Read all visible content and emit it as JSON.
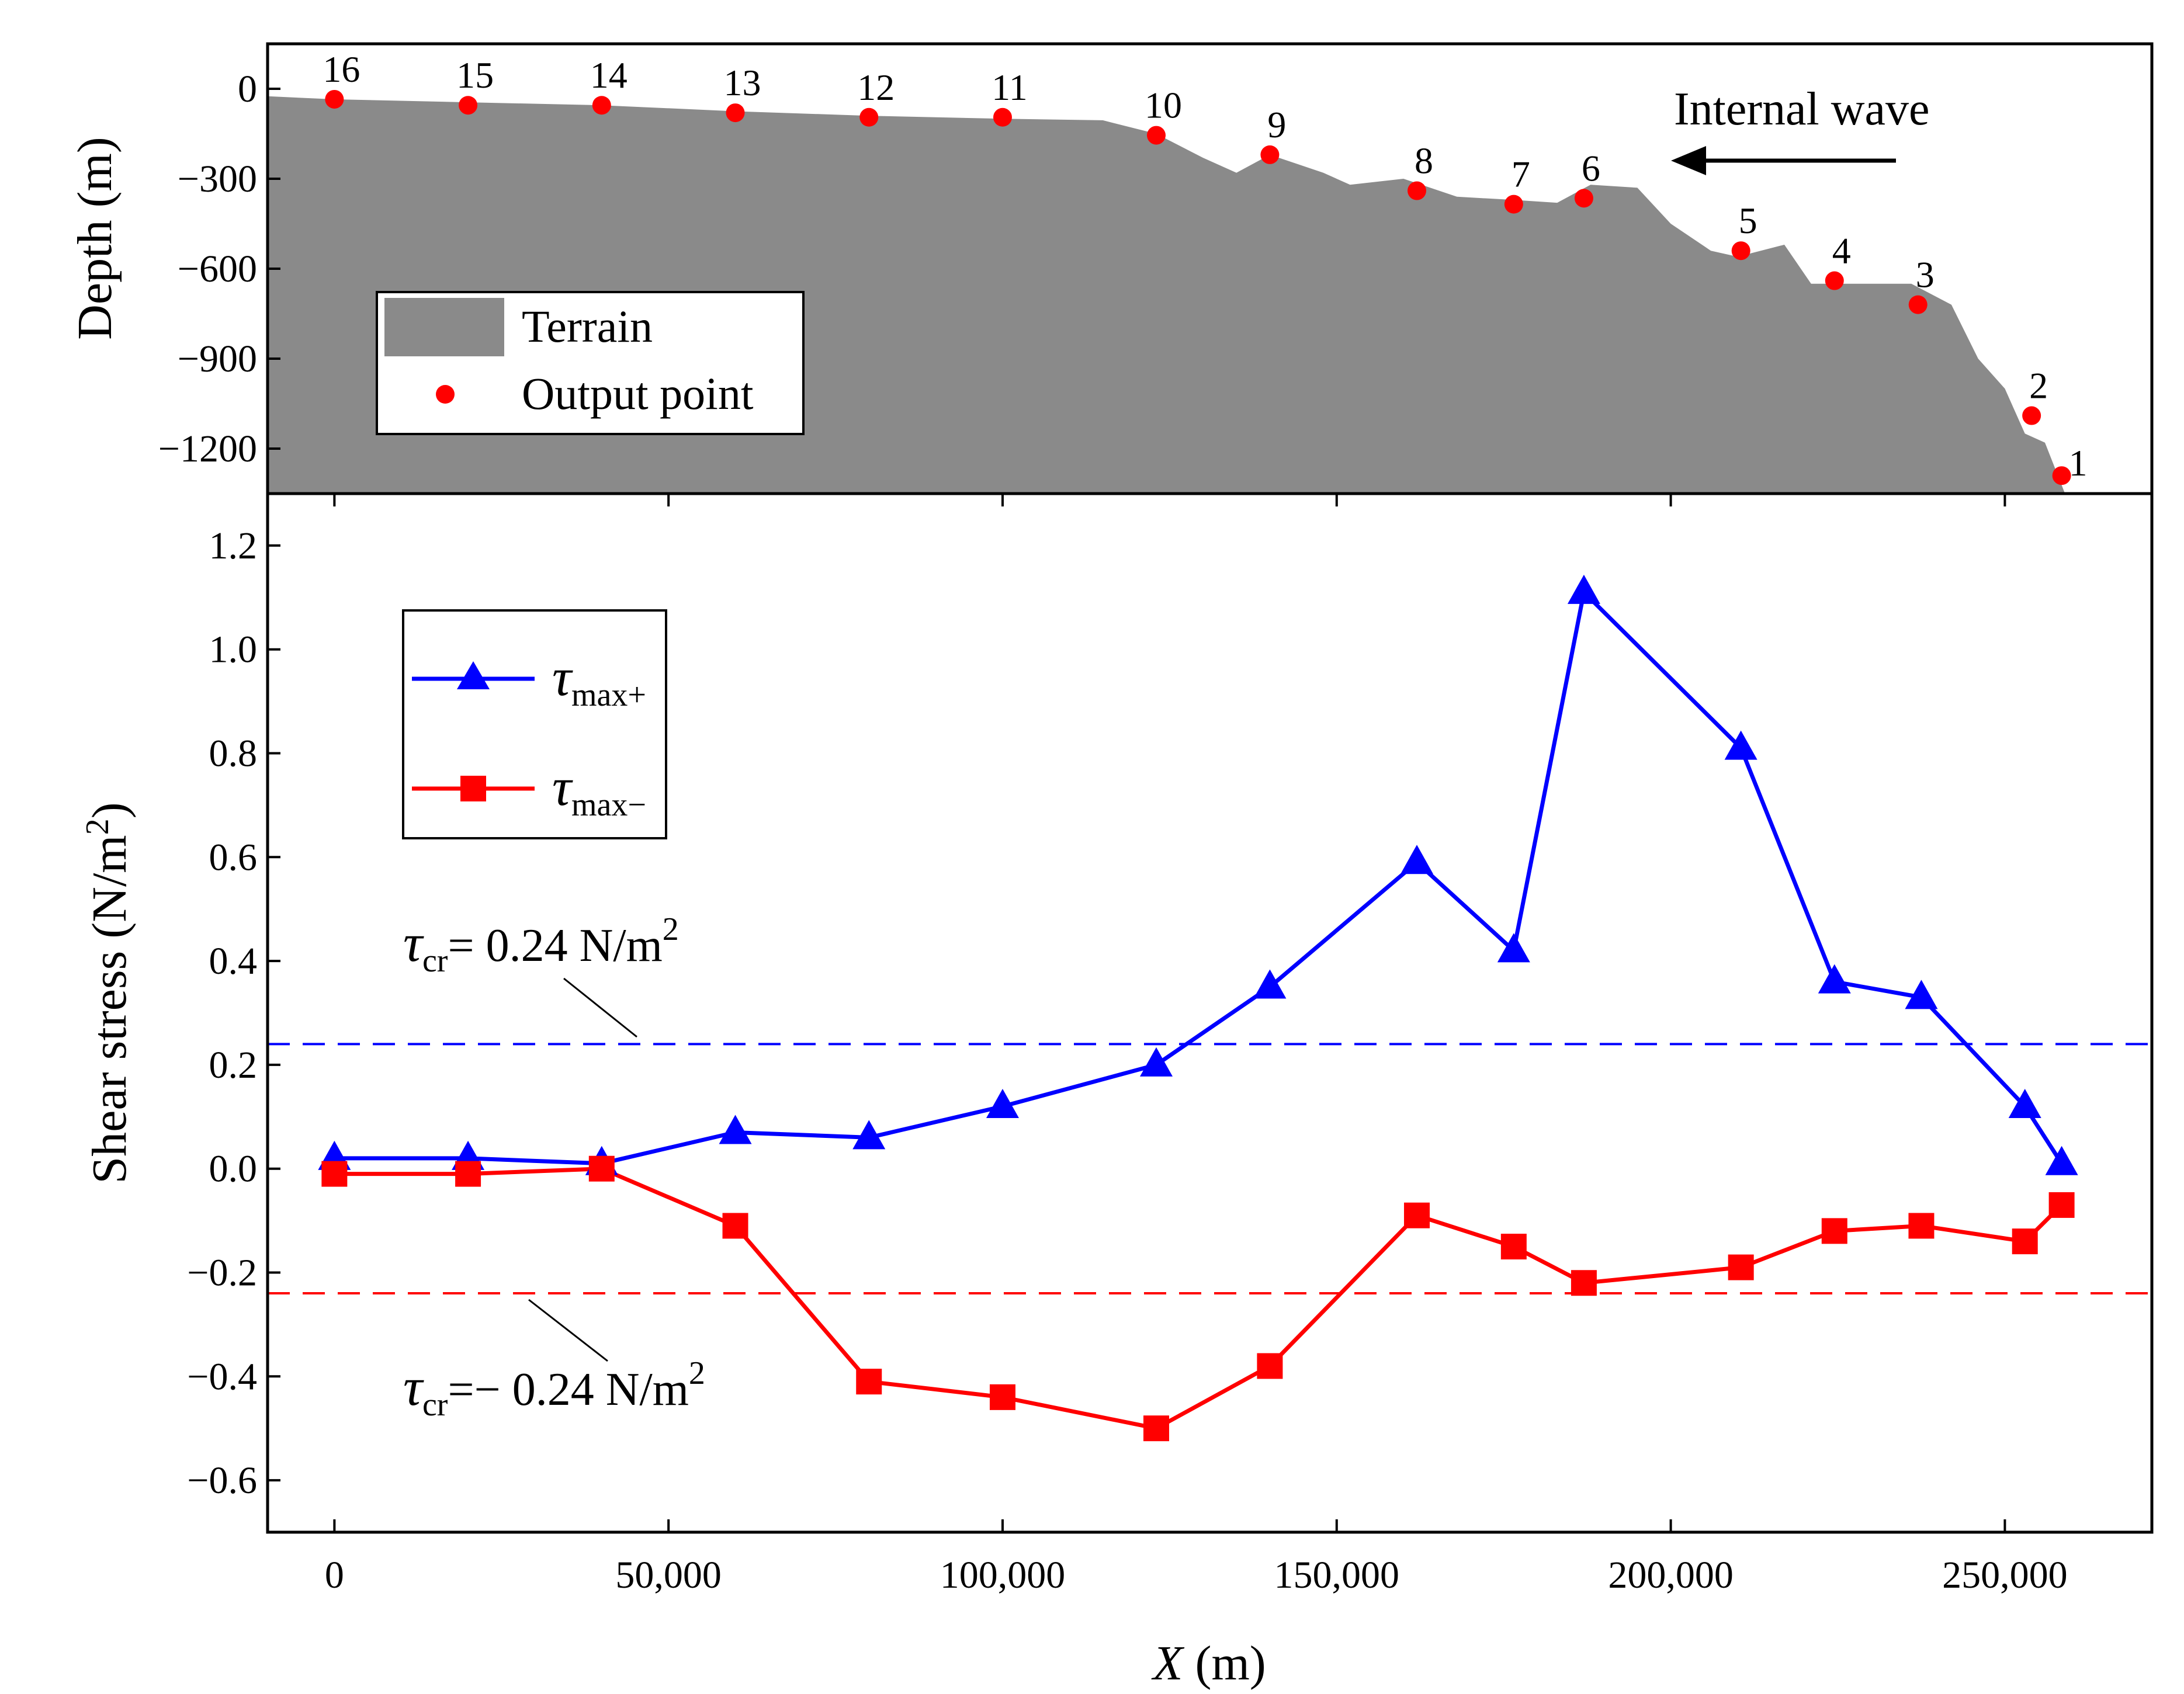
{
  "chart_data": [
    {
      "type": "area",
      "name": "terrain-profile",
      "ylabel": "Depth (m)",
      "xlim": [
        -10000,
        272000
      ],
      "ylim": [
        -1350,
        150
      ],
      "yticks": [
        0,
        -300,
        -600,
        -900,
        -1200
      ],
      "ytick_labels": [
        "0",
        "−300",
        "−600",
        "−900",
        "−1200"
      ],
      "terrain": {
        "x": [
          -10000,
          0,
          20000,
          40000,
          60000,
          80000,
          100000,
          115000,
          123000,
          130000,
          135000,
          140000,
          148000,
          152000,
          160000,
          168000,
          176000,
          183000,
          188000,
          195000,
          200000,
          206000,
          210000,
          217000,
          221000,
          226000,
          236000,
          242000,
          246000,
          250000,
          253000,
          256000,
          259000,
          272000
        ],
        "depth": [
          -25,
          -35,
          -45,
          -55,
          -75,
          -90,
          -100,
          -105,
          -150,
          -230,
          -280,
          -220,
          -280,
          -320,
          -300,
          -360,
          -370,
          -380,
          -320,
          -330,
          -450,
          -540,
          -560,
          -520,
          -650,
          -650,
          -650,
          -720,
          -900,
          -1000,
          -1150,
          -1180,
          -1350,
          -1350
        ]
      },
      "output_points": {
        "ids": [
          "1",
          "2",
          "3",
          "4",
          "5",
          "6",
          "7",
          "8",
          "9",
          "10",
          "11",
          "12",
          "13",
          "14",
          "15",
          "16"
        ],
        "x": [
          258500,
          254000,
          237000,
          224500,
          210500,
          187000,
          176500,
          162000,
          140000,
          123000,
          100000,
          80000,
          60000,
          40000,
          20000,
          0
        ],
        "depth": [
          -1290,
          -1090,
          -720,
          -640,
          -540,
          -365,
          -385,
          -340,
          -220,
          -155,
          -95,
          -95,
          -80,
          -55,
          -55,
          -35
        ]
      },
      "annotation": "Internal wave",
      "legend": {
        "terrain": "Terrain",
        "output": "Output point"
      },
      "colors": {
        "terrain": "#8a8a8a",
        "output": "#ff0000",
        "arrow": "#000000"
      }
    },
    {
      "type": "line",
      "name": "shear-stress",
      "xlabel_var": "X",
      "xlabel_unit": " (m)",
      "ylabel_main": "Shear stress (N/m",
      "ylabel_sup": "2",
      "ylabel_close": ")",
      "xlim": [
        -10000,
        272000
      ],
      "ylim": [
        -0.7,
        1.3
      ],
      "xticks": [
        0,
        50000,
        100000,
        150000,
        200000,
        250000
      ],
      "xtick_labels": [
        "0",
        "50,000",
        "100,000",
        "150,000",
        "200,000",
        "250,000"
      ],
      "yticks": [
        1.2,
        1.0,
        0.8,
        0.6,
        0.4,
        0.2,
        0.0,
        -0.2,
        -0.4,
        -0.6
      ],
      "ytick_labels": [
        "1.2",
        "1.0",
        "0.8",
        "0.6",
        "0.4",
        "0.2",
        "0.0",
        "−0.2",
        "−0.4",
        "−0.6"
      ],
      "x": [
        0,
        20000,
        40000,
        60000,
        80000,
        100000,
        123000,
        140000,
        162000,
        176500,
        187000,
        210500,
        224500,
        237500,
        253000,
        258500
      ],
      "series": [
        {
          "name": "tau_max_plus",
          "legend_symbol": "τ",
          "legend_sub": "max+",
          "marker": "triangle",
          "color": "#0000ff",
          "values": [
            0.02,
            0.02,
            0.01,
            0.07,
            0.06,
            0.12,
            0.2,
            0.35,
            0.59,
            0.42,
            1.11,
            0.81,
            0.36,
            0.33,
            0.12,
            0.01
          ]
        },
        {
          "name": "tau_max_minus",
          "legend_symbol": "τ",
          "legend_sub": "max−",
          "marker": "square",
          "color": "#ff0000",
          "values": [
            -0.01,
            -0.01,
            0.0,
            -0.11,
            -0.41,
            -0.44,
            -0.5,
            -0.38,
            -0.09,
            -0.15,
            -0.22,
            -0.19,
            -0.12,
            -0.11,
            -0.14,
            -0.07
          ]
        }
      ],
      "thresholds": [
        {
          "value": 0.24,
          "color": "#0000ff",
          "sym": "τ",
          "sub": "cr",
          "text": "= 0.24 N/m",
          "sup": "2"
        },
        {
          "value": -0.24,
          "color": "#ff0000",
          "sym": "τ",
          "sub": "cr",
          "text": "=− 0.24 N/m",
          "sup": "2"
        }
      ]
    }
  ]
}
